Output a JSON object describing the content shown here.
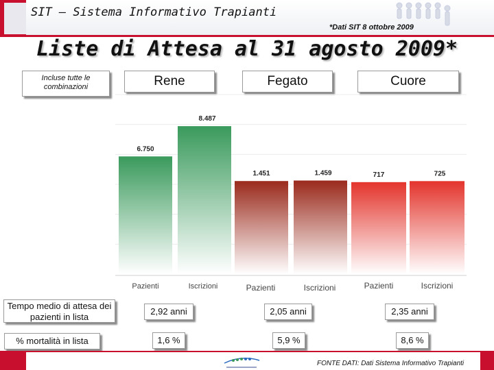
{
  "header": {
    "app_title": "SIT – Sistema Informativo Trapianti",
    "source_note": "*Dati SIT 8 ottobre 2009"
  },
  "page_title": "Liste di Attesa al 31 agosto 2009*",
  "note_box": "Incluse tutte le combinazioni",
  "organs": [
    "Rene",
    "Fegato",
    "Cuore"
  ],
  "rows": {
    "waiting_time_label": "Tempo medio di attesa dei pazienti in lista",
    "mortality_label": "% mortalità in lista",
    "waiting_time_values": [
      "2,92 anni",
      "2,05 anni",
      "2,35 anni"
    ],
    "mortality_values": [
      "1,6 %",
      "5,9 %",
      "8,6 %"
    ]
  },
  "footer": {
    "source": "FONTE DATI: Dati Sistema Informativo Trapianti"
  },
  "colors": {
    "rene": "#3a9a5c",
    "fegato": "#9a2a1c",
    "cuore": "#e3342c",
    "brand_red": "#c8102e"
  },
  "chart_data": {
    "type": "bar",
    "groups": [
      {
        "name": "Rene",
        "categories": [
          "Pazienti",
          "Iscrizioni"
        ],
        "values": [
          6750,
          8487
        ],
        "labels": [
          "6.750",
          "8.487"
        ],
        "ylim": [
          0,
          10300
        ]
      },
      {
        "name": "Fegato",
        "categories": [
          "Pazienti",
          "Iscrizioni"
        ],
        "values": [
          1451,
          1459
        ],
        "labels": [
          "1.451",
          "1.459"
        ],
        "ylim": [
          0,
          2800
        ]
      },
      {
        "name": "Cuore",
        "categories": [
          "Pazienti",
          "Iscrizioni"
        ],
        "values": [
          717,
          725
        ],
        "labels": [
          "717",
          "725"
        ],
        "ylim": [
          0,
          1400
        ]
      }
    ]
  }
}
